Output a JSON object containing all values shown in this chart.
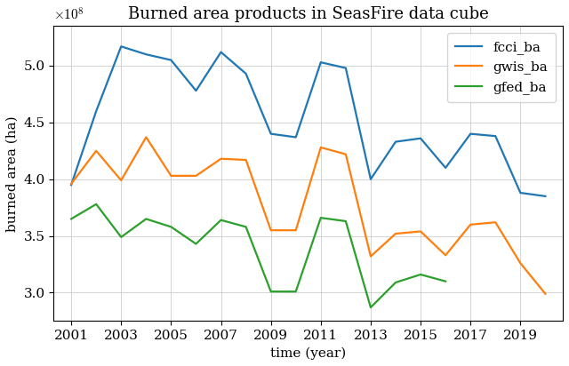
{
  "title": "Burned area products in SeasFire data cube",
  "xlabel": "time (year)",
  "ylabel": "burned area (ha)",
  "years": [
    2001,
    2002,
    2003,
    2004,
    2005,
    2006,
    2007,
    2008,
    2009,
    2010,
    2011,
    2012,
    2013,
    2014,
    2015,
    2016,
    2017,
    2018,
    2019,
    2020
  ],
  "fcci_ba": [
    395000000.0,
    460000000.0,
    517000000.0,
    510000000.0,
    505000000.0,
    478000000.0,
    512000000.0,
    493000000.0,
    440000000.0,
    437000000.0,
    503000000.0,
    498000000.0,
    400000000.0,
    433000000.0,
    436000000.0,
    410000000.0,
    440000000.0,
    438000000.0,
    388000000.0,
    385000000.0
  ],
  "gwis_ba": [
    396000000.0,
    425000000.0,
    399000000.0,
    437000000.0,
    403000000.0,
    403000000.0,
    418000000.0,
    417000000.0,
    355000000.0,
    355000000.0,
    428000000.0,
    422000000.0,
    332000000.0,
    352000000.0,
    354000000.0,
    333000000.0,
    360000000.0,
    362000000.0,
    326000000.0,
    299000000.0
  ],
  "gfed_ba": [
    365000000.0,
    378000000.0,
    349000000.0,
    365000000.0,
    358000000.0,
    343000000.0,
    364000000.0,
    358000000.0,
    301000000.0,
    301000000.0,
    366000000.0,
    363000000.0,
    287000000.0,
    309000000.0,
    316000000.0,
    310000000.0,
    null,
    null,
    null,
    null
  ],
  "fcci_color": "#1f77b4",
  "gwis_color": "#ff7f0e",
  "gfed_color": "#2ca02c",
  "ylim_min": 275000000.0,
  "ylim_max": 535000000.0,
  "xlim_min": 2000.3,
  "xlim_max": 2020.7,
  "xticks": [
    2001,
    2003,
    2005,
    2007,
    2009,
    2011,
    2013,
    2015,
    2017,
    2019
  ],
  "yticks": [
    300000000.0,
    350000000.0,
    400000000.0,
    450000000.0,
    500000000.0
  ],
  "title_fontsize": 13,
  "label_fontsize": 11,
  "tick_fontsize": 11,
  "legend_fontsize": 11,
  "linewidth": 1.6
}
